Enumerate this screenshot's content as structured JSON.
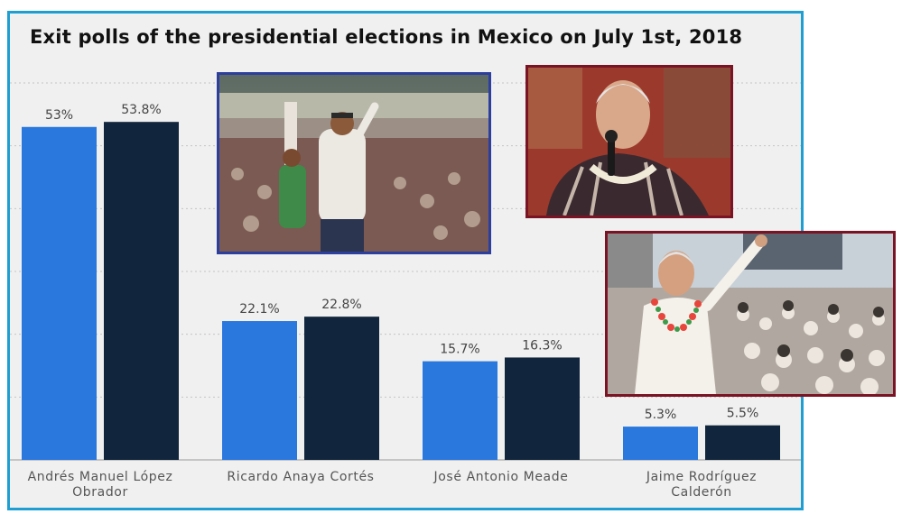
{
  "chart_data": {
    "type": "bar",
    "title": "Exit polls of the presidential elections in Mexico on July 1st, 2018",
    "categories": [
      "Andrés Manuel López Obrador",
      "Ricardo Anaya Cortés",
      "José Antonio Meade",
      "Jaime Rodríguez Calderón"
    ],
    "series": [
      {
        "values": [
          53,
          22.1,
          15.7,
          5.3
        ],
        "labels": [
          "53%",
          "22.1%",
          "15.7%",
          "5.3%"
        ],
        "color": "#2a78dd"
      },
      {
        "values": [
          53.8,
          22.8,
          16.3,
          5.5
        ],
        "labels": [
          "53.8%",
          "22.8%",
          "16.3%",
          "5.5%"
        ],
        "color": "#11253c"
      }
    ],
    "ylim": [
      0,
      60
    ],
    "grid": true,
    "xlabel": "",
    "ylabel": ""
  },
  "colors": {
    "frame_border": "#1f9fd1",
    "background": "#f0f0f0",
    "photo_border_blue": "#2c3e9e",
    "photo_border_red": "#7a1424"
  },
  "images": [
    {
      "name": "stadium-crowd-photo"
    },
    {
      "name": "candidate-speaking-photo"
    },
    {
      "name": "candidate-waving-photo"
    }
  ]
}
